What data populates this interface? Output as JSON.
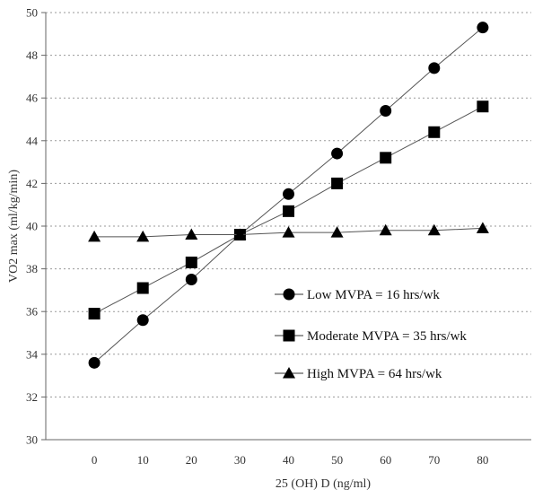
{
  "chart_data": {
    "type": "line",
    "title": "",
    "xlabel": "25 (OH) D (ng/ml)",
    "ylabel": "VO2 max (ml/kg/min)",
    "x": [
      0,
      10,
      20,
      30,
      40,
      50,
      60,
      70,
      80
    ],
    "xlim": [
      -10,
      90
    ],
    "xticks": [
      "0",
      "10",
      "20",
      "30",
      "40",
      "50",
      "60",
      "70",
      "80"
    ],
    "ylim": [
      30,
      50
    ],
    "yticks": [
      "30",
      "32",
      "34",
      "36",
      "38",
      "40",
      "42",
      "44",
      "46",
      "48",
      "50"
    ],
    "grid": "horizontal-dotted",
    "legend_position": "lower-right",
    "series": [
      {
        "name": "Low MVPA = 16 hrs/wk",
        "marker": "circle",
        "values": [
          33.6,
          35.6,
          37.5,
          39.6,
          41.5,
          43.4,
          45.4,
          47.4,
          49.3
        ]
      },
      {
        "name": "Moderate MVPA = 35 hrs/wk",
        "marker": "square",
        "values": [
          35.9,
          37.1,
          38.3,
          39.6,
          40.7,
          42.0,
          43.2,
          44.4,
          45.6
        ]
      },
      {
        "name": "High MVPA = 64 hrs/wk",
        "marker": "triangle",
        "values": [
          39.5,
          39.5,
          39.6,
          39.6,
          39.7,
          39.7,
          39.8,
          39.8,
          39.9
        ]
      }
    ]
  }
}
